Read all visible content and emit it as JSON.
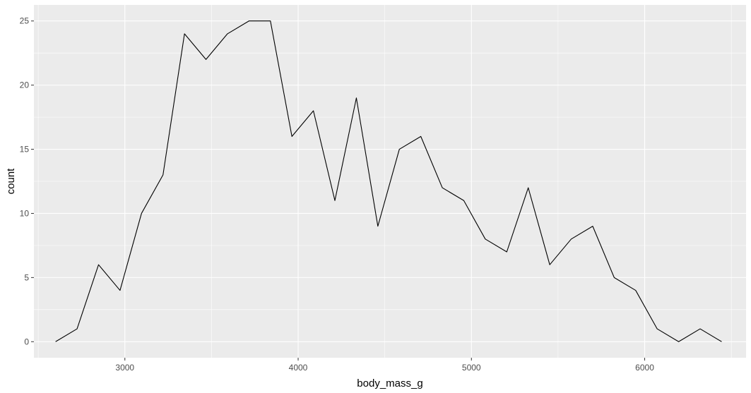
{
  "chart_data": {
    "type": "line",
    "title": "",
    "xlabel": "body_mass_g",
    "ylabel": "count",
    "xlim": [
      2475,
      6585
    ],
    "ylim": [
      -1.25,
      26.25
    ],
    "x_ticks": [
      3000,
      4000,
      5000,
      6000
    ],
    "x_tick_labels": [
      "3000",
      "4000",
      "5000",
      "6000"
    ],
    "x_minor_ticks": [
      2500,
      3500,
      4500,
      5500,
      6500
    ],
    "y_ticks": [
      0,
      5,
      10,
      15,
      20,
      25
    ],
    "y_tick_labels": [
      "0",
      "5",
      "10",
      "15",
      "20",
      "25"
    ],
    "y_minor_ticks": [
      2.5,
      7.5,
      12.5,
      17.5,
      22.5
    ],
    "grid": true,
    "series": [
      {
        "x": [
          2600,
          2724,
          2848,
          2972,
          3096,
          3220,
          3344,
          3468,
          3592,
          3716,
          3840,
          3964,
          4088,
          4212,
          4336,
          4460,
          4584,
          4708,
          4832,
          4956,
          5080,
          5204,
          5328,
          5452,
          5576,
          5700,
          5824,
          5948,
          6072,
          6196,
          6320,
          6444
        ],
        "values": [
          0,
          1,
          6,
          4,
          10,
          13,
          24,
          22,
          24,
          25,
          25,
          16,
          18,
          11,
          19,
          9,
          15,
          16,
          12,
          11,
          8,
          7,
          12,
          6,
          8,
          9,
          5,
          4,
          1,
          0,
          1,
          0
        ]
      }
    ]
  },
  "colors": {
    "panel_background": "#EBEBEB",
    "grid_major": "#FFFFFF",
    "line": "#000000",
    "tick_label": "#4D4D4D"
  }
}
